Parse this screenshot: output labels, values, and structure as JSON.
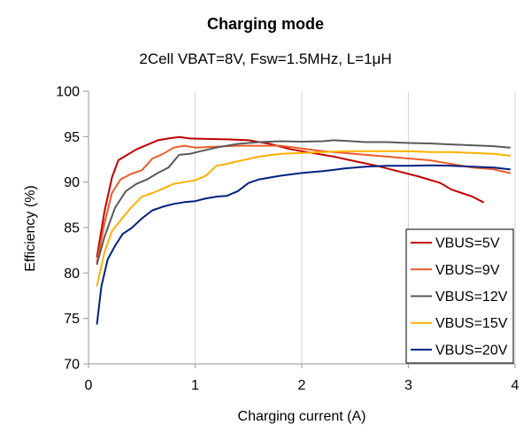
{
  "chart_data": {
    "type": "line",
    "title": "Charging mode",
    "subtitle": "2Cell VBAT=8V, Fsw=1.5MHz, L=1μH",
    "xlabel": "Charging current (A)",
    "ylabel": "Efficiency (%)",
    "xlim": [
      0,
      4
    ],
    "ylim": [
      70,
      100
    ],
    "x_ticks": [
      0,
      1,
      2,
      3,
      4
    ],
    "y_ticks": [
      70,
      75,
      80,
      85,
      90,
      95,
      100
    ],
    "grid": "vertical",
    "legend_position": "bottom-right",
    "series": [
      {
        "name": "VBUS=5V",
        "color": "#c00000",
        "points": [
          [
            0.08,
            81.8
          ],
          [
            0.15,
            86.8
          ],
          [
            0.22,
            90.5
          ],
          [
            0.28,
            92.4
          ],
          [
            0.35,
            92.9
          ],
          [
            0.45,
            93.6
          ],
          [
            0.55,
            94.1
          ],
          [
            0.65,
            94.6
          ],
          [
            0.75,
            94.8
          ],
          [
            0.85,
            94.95
          ],
          [
            0.95,
            94.8
          ],
          [
            1.1,
            94.75
          ],
          [
            1.3,
            94.7
          ],
          [
            1.5,
            94.6
          ],
          [
            1.7,
            94.2
          ],
          [
            1.9,
            93.6
          ],
          [
            2.1,
            93.2
          ],
          [
            2.3,
            92.8
          ],
          [
            2.5,
            92.3
          ],
          [
            2.7,
            91.8
          ],
          [
            2.9,
            91.2
          ],
          [
            3.1,
            90.6
          ],
          [
            3.3,
            89.9
          ],
          [
            3.4,
            89.2
          ],
          [
            3.5,
            88.8
          ],
          [
            3.6,
            88.4
          ],
          [
            3.7,
            87.8
          ]
        ]
      },
      {
        "name": "VBUS=9V",
        "color": "#ed5b2b",
        "points": [
          [
            0.08,
            81.2
          ],
          [
            0.15,
            85.5
          ],
          [
            0.22,
            88.8
          ],
          [
            0.3,
            90.3
          ],
          [
            0.4,
            90.9
          ],
          [
            0.5,
            91.3
          ],
          [
            0.6,
            92.6
          ],
          [
            0.7,
            93.1
          ],
          [
            0.8,
            93.8
          ],
          [
            0.9,
            94.0
          ],
          [
            1.0,
            93.8
          ],
          [
            1.2,
            93.9
          ],
          [
            1.4,
            94.0
          ],
          [
            1.6,
            94.0
          ],
          [
            1.8,
            94.0
          ],
          [
            2.0,
            93.7
          ],
          [
            2.2,
            93.4
          ],
          [
            2.4,
            93.2
          ],
          [
            2.6,
            93.0
          ],
          [
            2.8,
            92.8
          ],
          [
            3.0,
            92.6
          ],
          [
            3.2,
            92.4
          ],
          [
            3.4,
            92.0
          ],
          [
            3.6,
            91.6
          ],
          [
            3.8,
            91.4
          ],
          [
            3.95,
            91.0
          ]
        ]
      },
      {
        "name": "VBUS=12V",
        "color": "#5a5a5a",
        "points": [
          [
            0.08,
            81.0
          ],
          [
            0.15,
            84.0
          ],
          [
            0.25,
            87.2
          ],
          [
            0.35,
            89.0
          ],
          [
            0.45,
            89.8
          ],
          [
            0.55,
            90.3
          ],
          [
            0.65,
            91.0
          ],
          [
            0.75,
            91.6
          ],
          [
            0.85,
            93.0
          ],
          [
            0.95,
            93.1
          ],
          [
            1.05,
            93.4
          ],
          [
            1.2,
            93.8
          ],
          [
            1.4,
            94.2
          ],
          [
            1.6,
            94.4
          ],
          [
            1.8,
            94.5
          ],
          [
            2.0,
            94.45
          ],
          [
            2.2,
            94.5
          ],
          [
            2.3,
            94.6
          ],
          [
            2.4,
            94.55
          ],
          [
            2.6,
            94.4
          ],
          [
            2.8,
            94.4
          ],
          [
            3.0,
            94.3
          ],
          [
            3.2,
            94.25
          ],
          [
            3.4,
            94.15
          ],
          [
            3.6,
            94.05
          ],
          [
            3.8,
            93.95
          ],
          [
            3.95,
            93.8
          ]
        ]
      },
      {
        "name": "VBUS=15V",
        "color": "#ffb000",
        "points": [
          [
            0.08,
            78.6
          ],
          [
            0.15,
            82.3
          ],
          [
            0.22,
            84.6
          ],
          [
            0.3,
            85.8
          ],
          [
            0.4,
            87.2
          ],
          [
            0.5,
            88.4
          ],
          [
            0.6,
            88.8
          ],
          [
            0.7,
            89.3
          ],
          [
            0.8,
            89.8
          ],
          [
            0.9,
            90.0
          ],
          [
            1.0,
            90.2
          ],
          [
            1.1,
            90.7
          ],
          [
            1.2,
            91.8
          ],
          [
            1.3,
            92.0
          ],
          [
            1.4,
            92.3
          ],
          [
            1.6,
            92.8
          ],
          [
            1.8,
            93.1
          ],
          [
            2.0,
            93.2
          ],
          [
            2.2,
            93.3
          ],
          [
            2.4,
            93.4
          ],
          [
            2.6,
            93.4
          ],
          [
            2.8,
            93.4
          ],
          [
            3.0,
            93.4
          ],
          [
            3.2,
            93.3
          ],
          [
            3.4,
            93.3
          ],
          [
            3.6,
            93.2
          ],
          [
            3.8,
            93.1
          ],
          [
            3.95,
            92.9
          ]
        ]
      },
      {
        "name": "VBUS=20V",
        "color": "#002080",
        "points": [
          [
            0.08,
            74.4
          ],
          [
            0.12,
            78.5
          ],
          [
            0.18,
            81.5
          ],
          [
            0.25,
            83.0
          ],
          [
            0.32,
            84.3
          ],
          [
            0.4,
            84.9
          ],
          [
            0.5,
            86.0
          ],
          [
            0.6,
            86.9
          ],
          [
            0.7,
            87.3
          ],
          [
            0.8,
            87.6
          ],
          [
            0.9,
            87.8
          ],
          [
            1.0,
            87.9
          ],
          [
            1.1,
            88.2
          ],
          [
            1.2,
            88.4
          ],
          [
            1.3,
            88.5
          ],
          [
            1.4,
            89.0
          ],
          [
            1.5,
            89.9
          ],
          [
            1.6,
            90.3
          ],
          [
            1.8,
            90.7
          ],
          [
            2.0,
            91.0
          ],
          [
            2.2,
            91.2
          ],
          [
            2.4,
            91.5
          ],
          [
            2.6,
            91.7
          ],
          [
            2.8,
            91.8
          ],
          [
            3.0,
            91.8
          ],
          [
            3.2,
            91.85
          ],
          [
            3.4,
            91.8
          ],
          [
            3.6,
            91.7
          ],
          [
            3.8,
            91.6
          ],
          [
            3.95,
            91.4
          ]
        ]
      }
    ]
  }
}
